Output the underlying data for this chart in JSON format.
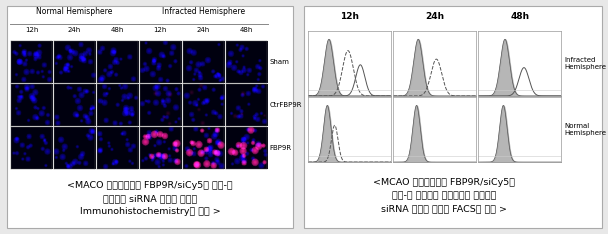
{
  "left_panel": {
    "title_normal": "Normal Hemisphere",
    "title_infracted": "Infracted Hemisphere",
    "col_labels": [
      "12h",
      "24h",
      "48h",
      "12h",
      "24h",
      "48h"
    ],
    "row_labels": [
      "Sham",
      "CtrFBP9R",
      "FBP9R"
    ],
    "bg_color": "#00001a",
    "cell_color_blue": "#1a1acc",
    "cell_color_pink": "#cc44aa",
    "border_color": "#888888"
  },
  "right_panel": {
    "col_labels": [
      "12h",
      "24h",
      "48h"
    ],
    "row_labels": [
      "Infracted\nHemisphere",
      "Normal\nHemisphere"
    ],
    "hist_fill_color": "#aaaaaa",
    "hist_line_color": "#333333",
    "border_color": "#888888"
  },
  "caption_left": "<MACO 동물모델에서 FBP9R/siCy5를 비강-뇌\n전달하여 siRNA 유전자 전달을\nImmunohistochemistry로 확인 >",
  "caption_right": "<MCAO 동물모델에서 FBP9R/siCy5를\n비강-뇌 전달하여 허혁유도된 뇌세포에\nsiRNA 유전자 전달을 FACS로 확인 >",
  "outer_bg": "#e8e8e8",
  "panel_bg": "#ffffff",
  "font_size_caption": 7,
  "font_size_label": 6
}
